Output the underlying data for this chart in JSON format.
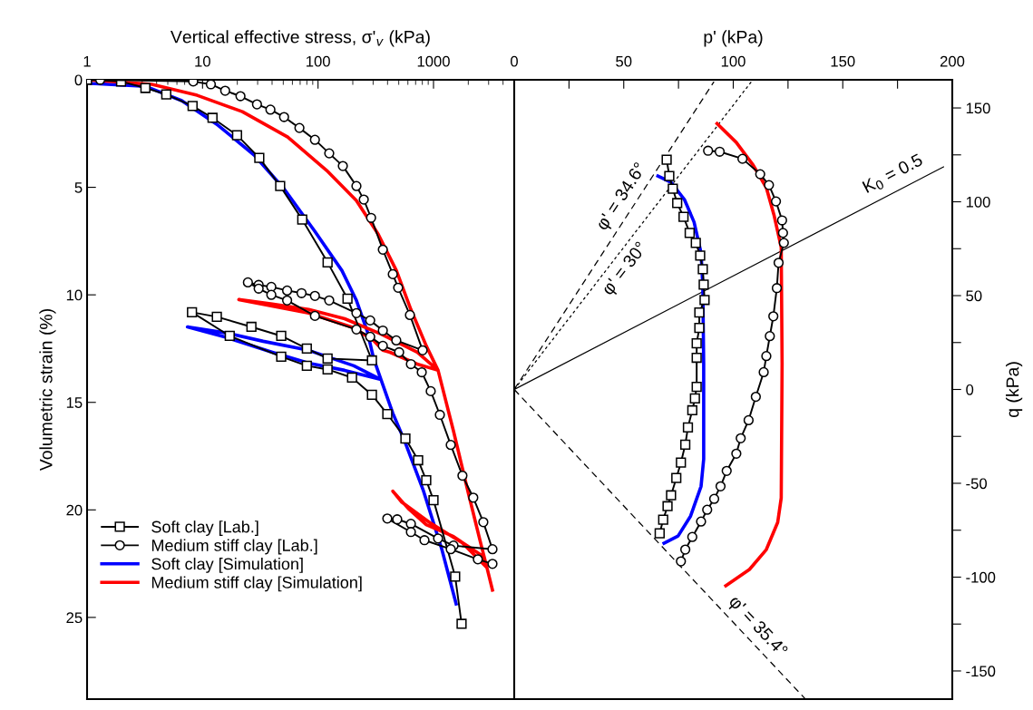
{
  "chart_data": [
    {
      "type": "line",
      "log": "x",
      "xlabel": "Vertical effective stress, σ'$_{v}$ (kPa)",
      "ylabel": "Volumetric strain (%)",
      "xlim": [
        1,
        5000
      ],
      "xticks": [
        1,
        10,
        100,
        1000
      ],
      "ylim": [
        28.8,
        0
      ],
      "yticks": [
        0,
        5,
        10,
        15,
        20,
        25
      ],
      "legend": "bottom left",
      "series": [
        {
          "name": "Soft clay [Lab.]",
          "color": "#000000",
          "marker": "square",
          "x": [
            1,
            1.97,
            3.2,
            4.85,
            8.2,
            12.2,
            19.9,
            31,
            47,
            73,
            121,
            180,
            293,
            121,
            80,
            48,
            26.5,
            13.3,
            8.1,
            17.2,
            48,
            80,
            121,
            197,
            293,
            398,
            571,
            736,
            865,
            1000,
            1540,
            1750
          ],
          "values": [
            0,
            0.08,
            0.38,
            0.68,
            1.22,
            1.77,
            2.58,
            3.63,
            4.94,
            6.5,
            8.49,
            10.18,
            13.05,
            12.96,
            12.5,
            11.91,
            11.49,
            11.02,
            10.81,
            11.91,
            12.88,
            13.3,
            13.47,
            13.85,
            14.65,
            15.54,
            16.68,
            17.69,
            18.62,
            19.55,
            23.1,
            25.3
          ]
        },
        {
          "name": "Medium stiff clay [Lab.]",
          "color": "#000000",
          "marker": "circle",
          "x": [
            1.3,
            8.3,
            11.8,
            15.7,
            21.3,
            29.6,
            38.7,
            50.8,
            69,
            94,
            125,
            164,
            215,
            249,
            288,
            364,
            444,
            494,
            625,
            805,
            476,
            364,
            283,
            215,
            125,
            94,
            72,
            54,
            39.4,
            30.6,
            24.7,
            30.6,
            39.4,
            54,
            94,
            215,
            283,
            364,
            504,
            637,
            791,
            946,
            1135,
            1410,
            1780,
            2210,
            2700,
            3240,
            1490,
            1095,
            637,
            485,
            398,
            637,
            835,
            1410,
            2420,
            3240
          ],
          "values": [
            0,
            0.08,
            0.21,
            0.51,
            0.76,
            1.14,
            1.39,
            1.73,
            2.24,
            2.79,
            3.42,
            4.01,
            4.94,
            5.57,
            6.42,
            7.9,
            9.04,
            9.67,
            10.94,
            12.58,
            12.12,
            11.66,
            11.19,
            10.85,
            10.26,
            10.05,
            9.92,
            9.8,
            9.63,
            9.54,
            9.42,
            9.71,
            10.0,
            10.26,
            10.98,
            11.61,
            11.95,
            12.37,
            12.67,
            13.22,
            13.6,
            14.48,
            15.58,
            16.98,
            18.41,
            19.43,
            20.57,
            21.83,
            21.66,
            21.33,
            20.65,
            20.44,
            20.4,
            21.03,
            21.41,
            21.83,
            22.3,
            22.51
          ]
        },
        {
          "name": "Soft clay [Simulation]",
          "color": "#0000ff",
          "x": [
            1,
            1.08,
            3.2,
            6.6,
            13.6,
            28,
            50.8,
            94,
            161,
            215,
            267,
            303,
            351,
            204,
            83,
            33.5,
            16.3,
            7.4,
            16.3,
            40.2,
            83,
            170,
            351,
            444,
            571,
            820,
            1180,
            1570
          ],
          "values": [
            0,
            0.17,
            0.3,
            0.97,
            2.11,
            3.5,
            5.07,
            7.05,
            8.87,
            10.26,
            11.7,
            12.96,
            13.94,
            13.3,
            12.58,
            12.16,
            11.78,
            11.49,
            11.99,
            12.67,
            13.18,
            13.51,
            13.94,
            15.5,
            16.89,
            19.13,
            21.83,
            24.37
          ]
        },
        {
          "name": "Medium stiff clay [Simulation]",
          "color": "#ff0000",
          "x": [
            1,
            3.64,
            8.97,
            22.1,
            54.6,
            119,
            215,
            332,
            477,
            637,
            865,
            1095,
            722,
            351,
            170,
            83,
            40.2,
            20.6,
            83,
            204,
            303,
            364,
            420,
            722,
            1095,
            1490,
            2020,
            2560,
            2900,
            1780,
            914,
            531,
            444,
            603,
            865,
            1490,
            2560,
            2900,
            3240
          ],
          "values": [
            0,
            0.21,
            0.72,
            1.48,
            2.66,
            4.22,
            5.62,
            7.18,
            8.87,
            10.68,
            12.37,
            13.51,
            12.67,
            11.82,
            11.11,
            10.68,
            10.43,
            10.22,
            10.85,
            11.53,
            12.12,
            12.58,
            12.67,
            13.22,
            13.51,
            16.34,
            19.3,
            21.54,
            22.68,
            21.54,
            20.57,
            19.64,
            19.13,
            19.93,
            20.69,
            21.24,
            22.09,
            22.68,
            23.73
          ]
        }
      ]
    },
    {
      "type": "line",
      "xlabel": "p' (kPa)",
      "ylabel": "q (kPa)",
      "xlim": [
        0,
        200
      ],
      "xticks": [
        0,
        {
          "value": 25,
          "label": null
        },
        50,
        {
          "value": 75,
          "label": null
        },
        100,
        {
          "value": 125,
          "label": null
        },
        150,
        {
          "value": 175,
          "label": null
        },
        200
      ],
      "ylim": [
        -165,
        165
      ],
      "yticks": [
        -150,
        {
          "value": -125,
          "label": null
        },
        -100,
        {
          "value": -75,
          "label": null
        },
        -50,
        {
          "value": -25,
          "label": null
        },
        0,
        {
          "value": 25,
          "label": null
        },
        50,
        {
          "value": 75,
          "label": null
        },
        100,
        {
          "value": 125,
          "label": null
        },
        150
      ],
      "annotations": [
        "φ' = 34.6°",
        "φ' = 30°",
        "K$_{0}$ = 0.5",
        "φ' = 35.4°"
      ],
      "series": [
        {
          "color": "#000000",
          "line_style": "dashed",
          "x": [
            0,
            91.2
          ],
          "values": [
            0,
            164
          ]
        },
        {
          "color": "#000000",
          "line_style": "dotted",
          "x": [
            0,
            108.2
          ],
          "values": [
            0,
            163.9
          ]
        },
        {
          "color": "#000000",
          "line_style": "solid",
          "x": [
            0,
            196
          ],
          "values": [
            0,
            118.6
          ]
        },
        {
          "color": "#000000",
          "line_style": "dashed",
          "x": [
            0,
            132.8
          ],
          "values": [
            0,
            -164.8
          ]
        },
        {
          "color": "#000000",
          "marker": "square",
          "x": [
            69.6,
            70.8,
            72.4,
            74.4,
            77.3,
            80.1,
            82.9,
            84.9,
            86.1,
            86.5,
            86.9,
            84.5,
            84.5,
            83.3,
            83.3,
            83.3,
            82.5,
            81.3,
            79.3,
            78.1,
            76.1,
            74.0,
            71.6,
            70.0,
            68.0,
            66.4
          ],
          "values": [
            122.4,
            113.7,
            107.0,
            99.3,
            92.0,
            83.4,
            78.1,
            71.3,
            64.1,
            55.9,
            47.7,
            41.0,
            32.8,
            24.6,
            16.9,
            1.4,
            -4.8,
            -11.1,
            -20.2,
            -29.4,
            -39.0,
            -47.2,
            -56.4,
            -62.2,
            -69.4,
            -76.6
          ]
        },
        {
          "color": "#000000",
          "marker": "circle",
          "x": [
            88.5,
            93.8,
            104.2,
            112.3,
            116.3,
            119.5,
            122.3,
            122.7,
            123.1,
            120.7,
            119.9,
            118.3,
            116.7,
            115.1,
            113.9,
            110.3,
            107.0,
            103.4,
            101.4,
            97.0,
            94.2,
            91.3,
            88.1,
            85.3,
            81.3,
            78.1,
            76.1
          ],
          "values": [
            127.2,
            126.7,
            122.9,
            114.7,
            108.9,
            100.2,
            90.1,
            83.4,
            78.1,
            67.5,
            54.0,
            39.0,
            28.4,
            17.8,
            9.2,
            -3.9,
            -16.4,
            -26.0,
            -34.2,
            -43.4,
            -51.6,
            -58.3,
            -64.1,
            -70.4,
            -78.6,
            -85.3,
            -91.6
          ]
        },
        {
          "color": "#0000ff",
          "x": [
            65.6,
            71.6,
            77.7,
            82.1,
            85.3,
            86.1,
            86.5,
            86.5,
            85.3,
            80.5,
            74.8,
            68.4
          ],
          "values": [
            113.7,
            110.4,
            101.2,
            89.2,
            72.8,
            54.9,
            14.0,
            -37.1,
            -51.6,
            -67.5,
            -78.1,
            -81.9
          ]
        },
        {
          "color": "#ff0000",
          "x": [
            92.6,
            101.4,
            109.1,
            115.1,
            118.7,
            121.9,
            122.3,
            121.9,
            120.3,
            115.1,
            107.4,
            96.6
          ],
          "values": [
            141.7,
            131.6,
            119.5,
            107.5,
            92.5,
            75.7,
            14.0,
            -57.8,
            -70.8,
            -85.3,
            -95.9,
            -104.6
          ]
        }
      ]
    }
  ]
}
